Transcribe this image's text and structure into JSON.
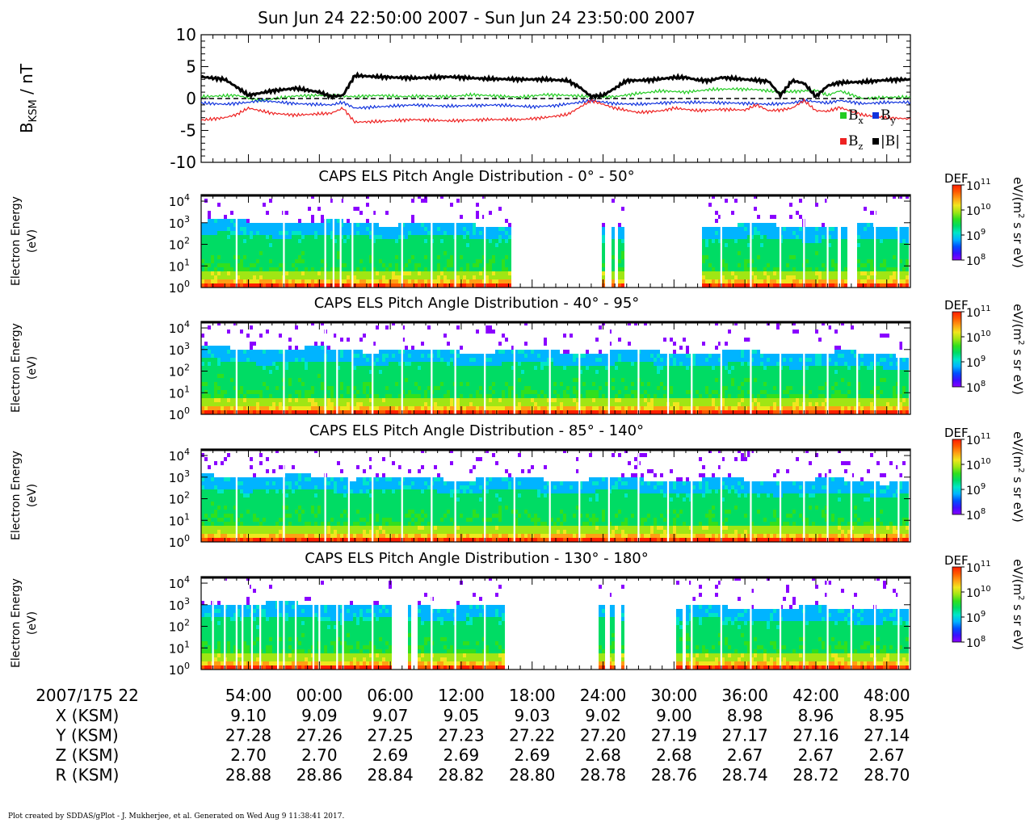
{
  "header": {
    "title": "Sun Jun 24 22:50:00 2007 - Sun Jun 24 23:50:00 2007"
  },
  "colors": {
    "bx": "#22cc22",
    "by": "#1133dd",
    "bz": "#ee2222",
    "bmag": "#000000",
    "colormap": [
      "#8a00ff",
      "#3a10ff",
      "#0050ff",
      "#00b4ff",
      "#00e6c8",
      "#00dc64",
      "#30e01e",
      "#a0e614",
      "#f0e61e",
      "#ffa014",
      "#ff5a00",
      "#ff1e00"
    ]
  },
  "mag_panel": {
    "ylabel_main": "B",
    "ylabel_sub": "KSM",
    "ylabel_unit": " / nT",
    "yticks": [
      "10",
      "5",
      "0",
      "-5",
      "-10"
    ],
    "legend": [
      {
        "key": "bx",
        "base": "B",
        "sub": "x"
      },
      {
        "key": "by",
        "base": "B",
        "sub": "y"
      },
      {
        "key": "bz",
        "base": "B",
        "sub": "z"
      },
      {
        "key": "bmag",
        "base": "|B|",
        "sub": ""
      }
    ]
  },
  "spectro_panels": [
    {
      "title": "CAPS ELS Pitch Angle Distribution - 0° - 50°"
    },
    {
      "title": "CAPS ELS Pitch Angle Distribution - 40° - 95°"
    },
    {
      "title": "CAPS ELS Pitch Angle Distribution - 85° - 140°"
    },
    {
      "title": "CAPS ELS Pitch Angle Distribution - 130° - 180°"
    }
  ],
  "spectro_axis": {
    "ylabel_line1": "Electron Energy",
    "ylabel_line2": "(eV)",
    "yticks": [
      {
        "base": "10",
        "exp": "4"
      },
      {
        "base": "10",
        "exp": "3"
      },
      {
        "base": "10",
        "exp": "2"
      },
      {
        "base": "10",
        "exp": "1"
      },
      {
        "base": "10",
        "exp": "0"
      }
    ]
  },
  "colorbar": {
    "label": "DEF",
    "unit_pre": "eV/(m",
    "unit_exp": "2",
    "unit_post": " s sr eV)",
    "ticks": [
      {
        "base": "10",
        "exp": "11"
      },
      {
        "base": "10",
        "exp": "10"
      },
      {
        "base": "10",
        "exp": "9"
      },
      {
        "base": "10",
        "exp": "8"
      }
    ]
  },
  "ephemeris": {
    "date_label": "2007/175 22",
    "times": [
      "54:00",
      "00:00",
      "06:00",
      "12:00",
      "18:00",
      "24:00",
      "30:00",
      "36:00",
      "42:00",
      "48:00"
    ],
    "rows": [
      {
        "label": "X (KSM)",
        "values": [
          "9.10",
          "9.09",
          "9.07",
          "9.05",
          "9.03",
          "9.02",
          "9.00",
          "8.98",
          "8.96",
          "8.95"
        ]
      },
      {
        "label": "Y (KSM)",
        "values": [
          "27.28",
          "27.26",
          "27.25",
          "27.23",
          "27.22",
          "27.20",
          "27.19",
          "27.17",
          "27.16",
          "27.14"
        ]
      },
      {
        "label": "Z (KSM)",
        "values": [
          "2.70",
          "2.70",
          "2.69",
          "2.69",
          "2.69",
          "2.68",
          "2.68",
          "2.67",
          "2.67",
          "2.67"
        ]
      },
      {
        "label": "R (KSM)",
        "values": [
          "28.88",
          "28.86",
          "28.84",
          "28.82",
          "28.80",
          "28.78",
          "28.76",
          "28.74",
          "28.72",
          "28.70"
        ]
      }
    ]
  },
  "footer": {
    "text": "Plot created by SDDAS/gPlot - J. Mukherjee, et al.  Generated on Wed Aug 9 11:38:41 2017."
  },
  "chart_data": {
    "type": "line",
    "x_unit": "minutes after 2007-06-24 22:50:00",
    "xlim": [
      0,
      60
    ],
    "ylim": [
      -10,
      10
    ],
    "series": [
      {
        "name": "Bx",
        "key": "bx",
        "x": [
          0,
          3,
          5,
          8,
          10,
          13,
          15,
          17,
          19,
          21,
          23,
          25,
          27,
          29,
          31,
          33,
          35,
          37,
          39,
          41,
          43,
          45,
          47,
          49,
          51,
          52,
          53,
          54,
          56,
          58,
          60
        ],
        "y": [
          0.3,
          0.5,
          -0.3,
          0.4,
          0.5,
          0.3,
          0.5,
          0.3,
          0.4,
          0.3,
          0.6,
          0.4,
          0.2,
          0.6,
          0.5,
          0.3,
          0.3,
          0.8,
          1.2,
          1.0,
          1.4,
          1.5,
          1.4,
          1.0,
          1.2,
          1.3,
          0.5,
          1.2,
          0.0,
          0.2,
          0.2
        ]
      },
      {
        "name": "By",
        "key": "by",
        "x": [
          0,
          2,
          4,
          5,
          8,
          11,
          12,
          13,
          15,
          18,
          21,
          23,
          25,
          28,
          30,
          32,
          33,
          35,
          37,
          40,
          42,
          45,
          48,
          50,
          51,
          53,
          54,
          56,
          58,
          60
        ],
        "y": [
          -0.7,
          -0.9,
          -0.6,
          -0.3,
          -0.8,
          -1.0,
          -0.6,
          -1.5,
          -1.3,
          -1.0,
          -1.2,
          -1.1,
          -1.0,
          -1.3,
          -1.1,
          -0.6,
          -0.3,
          -0.8,
          -0.9,
          -0.6,
          -0.6,
          -0.7,
          -0.9,
          -0.7,
          -0.3,
          -0.7,
          -0.3,
          -0.8,
          -0.6,
          -0.6
        ]
      },
      {
        "name": "Bz",
        "key": "bz",
        "x": [
          0,
          2,
          3,
          4,
          6,
          8,
          11,
          12,
          13,
          15,
          18,
          21,
          24,
          27,
          29,
          31,
          33,
          35,
          37,
          39,
          40,
          42,
          44,
          46,
          47,
          48,
          49,
          50,
          51,
          52,
          53,
          54,
          56,
          58,
          60
        ],
        "y": [
          -3.4,
          -3.0,
          -2.5,
          -1.5,
          -2.3,
          -2.6,
          -2.3,
          -1.5,
          -3.7,
          -3.6,
          -3.3,
          -3.5,
          -3.3,
          -3.3,
          -3.0,
          -2.5,
          -0.3,
          -1.5,
          -2.2,
          -1.9,
          -1.5,
          -1.9,
          -1.7,
          -1.8,
          -1.0,
          -1.9,
          -1.8,
          -1.5,
          -0.3,
          -1.9,
          -2.0,
          -1.4,
          -2.6,
          -3.0,
          -3.2
        ]
      },
      {
        "name": "|B|",
        "key": "bmag",
        "x": [
          0,
          2,
          3,
          4,
          6,
          8,
          10,
          11,
          12,
          13,
          15,
          18,
          21,
          24,
          27,
          29,
          31,
          32,
          33,
          34,
          35,
          36,
          38,
          40,
          41,
          42,
          43,
          44,
          46,
          48,
          49,
          50,
          51,
          52,
          53,
          54,
          56,
          58,
          60
        ],
        "y": [
          3.4,
          3.0,
          1.8,
          0.5,
          1.2,
          1.6,
          1.0,
          0.3,
          0.5,
          3.6,
          3.4,
          3.2,
          3.4,
          3.1,
          3.0,
          3.0,
          2.8,
          1.8,
          0.3,
          0.5,
          1.6,
          2.8,
          2.9,
          3.3,
          3.3,
          2.9,
          2.8,
          3.3,
          3.0,
          2.7,
          0.5,
          2.8,
          2.4,
          0.3,
          2.0,
          2.5,
          2.6,
          2.9,
          3.0
        ]
      }
    ],
    "spectrograms": {
      "type": "heatmap",
      "y_unit": "eV",
      "ylim": [
        1,
        20000
      ],
      "color_unit": "DEF",
      "color_range": [
        100000000.0,
        100000000000.0
      ],
      "white_lines": [
        [
          3,
          7,
          10.5,
          11.2,
          11.8,
          12.8,
          14.5,
          17,
          19.5,
          21.5,
          24,
          26.5,
          29.5,
          32,
          34.5,
          37,
          39.5,
          41.5,
          44,
          46.5,
          49,
          51,
          53,
          55,
          57,
          59
        ],
        [
          3,
          7,
          10.5,
          11.5,
          12.8,
          14.5,
          17,
          19.5,
          21.5,
          24,
          26.5,
          29.5,
          32,
          34.5,
          37,
          39.5,
          41.5,
          44,
          46.5,
          49,
          51,
          53,
          55.5,
          57,
          59
        ],
        [
          3,
          7,
          10.5,
          12.5,
          14.5,
          17,
          19.5,
          21.5,
          24,
          26.5,
          29.5,
          32,
          34.5,
          37,
          39.5,
          41.5,
          44,
          46.5,
          49,
          51,
          53,
          55,
          57,
          59
        ],
        [
          1,
          2,
          3,
          3.5,
          4.3,
          5,
          6.5,
          7,
          8,
          9.5,
          10,
          11.5,
          12,
          14.5,
          17,
          19.5,
          21.5,
          24,
          26.5,
          29.5,
          32,
          34.5,
          37,
          39.5,
          41.5,
          44,
          46.5,
          49,
          51,
          53,
          55,
          57,
          59
        ]
      ],
      "gaps": [
        [
          [
            26.2,
            33.8
          ],
          [
            34.1,
            34.6
          ],
          [
            35.0,
            35.3
          ],
          [
            35.8,
            42.5
          ],
          [
            53.9,
            54.2
          ],
          [
            54.7,
            55.1
          ],
          [
            55.2,
            55.4
          ]
        ],
        [],
        [],
        [
          [
            16.2,
            17.4
          ],
          [
            17.8,
            18.3
          ],
          [
            25.8,
            33.5
          ],
          [
            34.1,
            34.4
          ],
          [
            35.0,
            35.4
          ],
          [
            35.8,
            40.2
          ],
          [
            40.6,
            41.1
          ]
        ]
      ]
    }
  }
}
